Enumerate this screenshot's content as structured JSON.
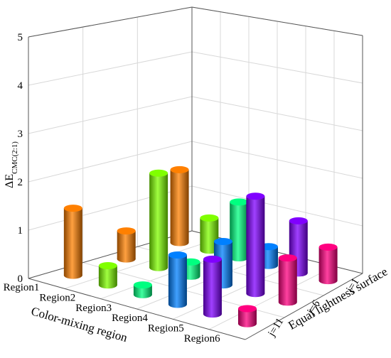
{
  "chart_data": {
    "type": "bar3d",
    "z_label": "ΔE",
    "z_label_sub": "CMC(2:1)",
    "x_label": "Color-mixing region",
    "y_label": "Equal lightness surface",
    "categories": [
      "Region1",
      "Region2",
      "Region3",
      "Region4",
      "Region5",
      "Region6"
    ],
    "colors": [
      "#ff8000",
      "#80ff00",
      "#00ff80",
      "#0080ff",
      "#8000ff",
      "#ff0080"
    ],
    "series": [
      {
        "name": "j=1",
        "values": [
          1.6,
          0.7,
          1.2,
          0.4,
          1.1,
          0.7
        ]
      },
      {
        "name": "j=6",
        "values": [
          0.6,
          2.0,
          0.3,
          0.9,
          2.0,
          0.9
        ]
      },
      {
        "name": "j=11",
        "values": [
          1.4,
          0.4,
          0.2,
          1.0,
          1.1,
          0.3
        ]
      }
    ],
    "zlim": [
      0,
      5
    ],
    "zticks": [
      0,
      1,
      2,
      3,
      4,
      5
    ],
    "grid": true
  }
}
